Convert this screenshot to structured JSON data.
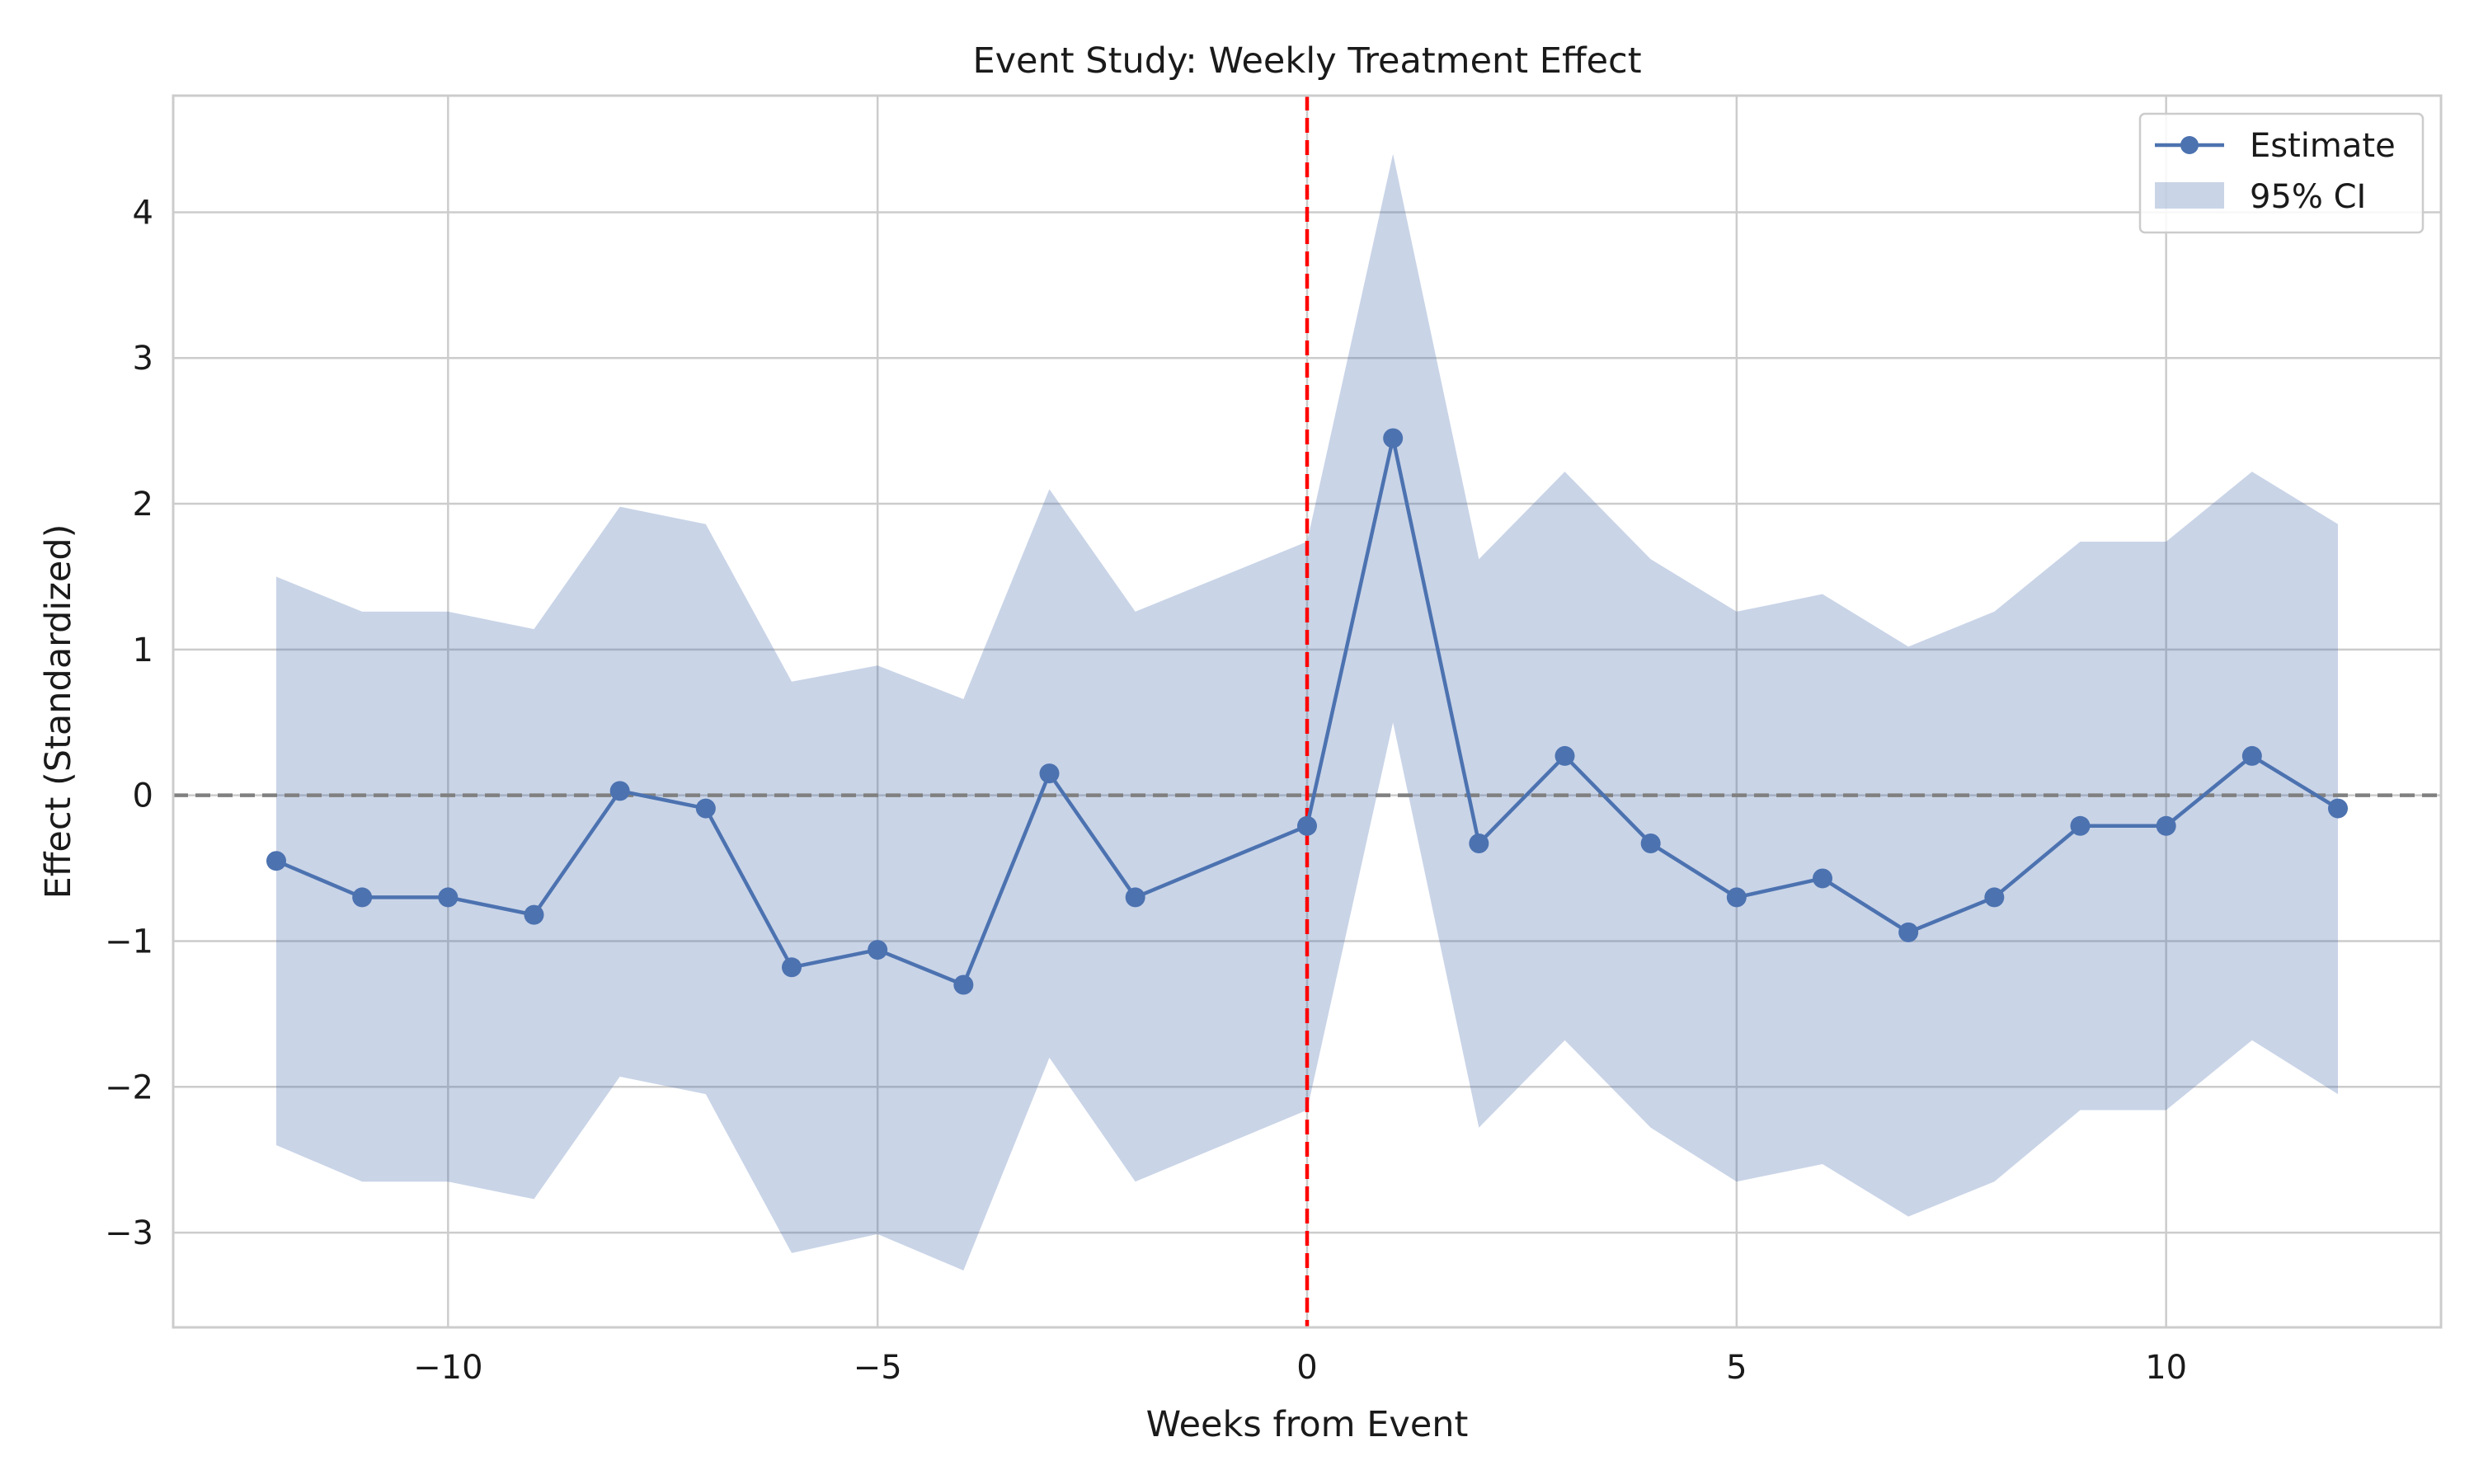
{
  "chart_data": {
    "type": "line",
    "title": "Event Study: Weekly Treatment Effect",
    "xlabel": "Weeks from Event",
    "ylabel": "Effect (Standardized)",
    "xlim": [
      -13.2,
      13.2
    ],
    "ylim": [
      -3.65,
      4.8
    ],
    "x_ticks": [
      -10,
      -5,
      0,
      5,
      10
    ],
    "x_tick_labels": [
      "−10",
      "−5",
      "0",
      "5",
      "10"
    ],
    "y_ticks": [
      -3,
      -2,
      -1,
      0,
      1,
      2,
      3,
      4
    ],
    "y_tick_labels": [
      "−3",
      "−2",
      "−1",
      "0",
      "1",
      "2",
      "3",
      "4"
    ],
    "grid": true,
    "legend": {
      "position": "top-right",
      "entries": [
        {
          "label": "Estimate",
          "kind": "line-marker"
        },
        {
          "label": "95% CI",
          "kind": "band"
        }
      ]
    },
    "series": [
      {
        "name": "Estimate",
        "color": "#4c72b0",
        "x": [
          -12,
          -11,
          -10,
          -9,
          -8,
          -7,
          -6,
          -5,
          -4,
          -3,
          -2,
          0,
          1,
          2,
          3,
          4,
          5,
          6,
          7,
          8,
          9,
          10,
          11,
          12
        ],
        "y": [
          -0.45,
          -0.7,
          -0.7,
          -0.82,
          0.03,
          -0.09,
          -1.18,
          -1.06,
          -1.3,
          0.15,
          -0.7,
          -0.21,
          2.45,
          -0.33,
          0.27,
          -0.33,
          -0.7,
          -0.57,
          -0.94,
          -0.7,
          -0.21,
          -0.21,
          0.27,
          -0.09
        ]
      }
    ],
    "ci_band": {
      "name": "95% CI",
      "color": "#4c72b0",
      "opacity": 0.3,
      "x": [
        -12,
        -11,
        -10,
        -9,
        -8,
        -7,
        -6,
        -5,
        -4,
        -3,
        -2,
        0,
        1,
        2,
        3,
        4,
        5,
        6,
        7,
        8,
        9,
        10,
        11,
        12
      ],
      "upper": [
        1.5,
        1.26,
        1.26,
        1.14,
        1.98,
        1.86,
        0.78,
        0.89,
        0.66,
        2.1,
        1.26,
        1.74,
        4.4,
        1.62,
        2.22,
        1.62,
        1.26,
        1.38,
        1.02,
        1.26,
        1.74,
        1.74,
        2.22,
        1.86
      ],
      "lower": [
        -2.4,
        -2.65,
        -2.65,
        -2.77,
        -1.93,
        -2.05,
        -3.14,
        -3.01,
        -3.26,
        -1.8,
        -2.65,
        -2.16,
        0.5,
        -2.28,
        -1.68,
        -2.28,
        -2.65,
        -2.53,
        -2.89,
        -2.65,
        -2.16,
        -2.16,
        -1.68,
        -2.05
      ]
    },
    "reference_lines": [
      {
        "orientation": "horizontal",
        "value": 0,
        "color": "#808080",
        "style": "dashed"
      },
      {
        "orientation": "vertical",
        "value": 0,
        "color": "#ff0000",
        "style": "dashed"
      }
    ]
  }
}
